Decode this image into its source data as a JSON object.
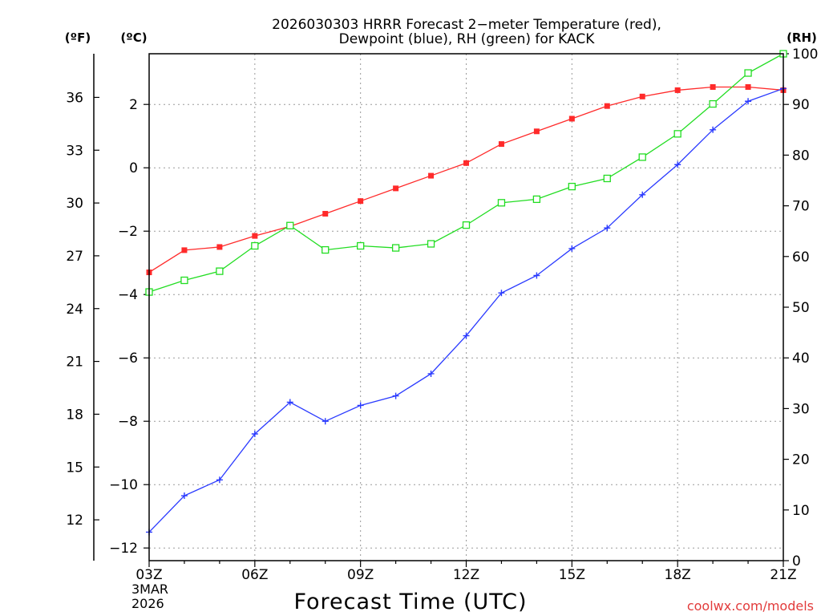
{
  "chart_data": {
    "type": "line",
    "title_line1": "2026030303 HRRR Forecast 2−meter Temperature (red),",
    "title_line2": "Dewpoint (blue), RH (green) for KACK",
    "xlabel": "Forecast Time (UTC)",
    "footer": "coolwx.com/models",
    "date_line1": "3MAR",
    "date_line2": "2026",
    "axis_label_f": "(ºF)",
    "axis_label_c": "(ºC)",
    "axis_label_rh": "(RH)",
    "x_hours": [
      3,
      4,
      5,
      6,
      7,
      8,
      9,
      10,
      11,
      12,
      13,
      14,
      15,
      16,
      17,
      18,
      19,
      20,
      21
    ],
    "x_ticks": [
      {
        "hour": 3,
        "label": "03Z"
      },
      {
        "hour": 6,
        "label": "06Z"
      },
      {
        "hour": 9,
        "label": "09Z"
      },
      {
        "hour": 12,
        "label": "12Z"
      },
      {
        "hour": 15,
        "label": "15Z"
      },
      {
        "hour": 18,
        "label": "18Z"
      },
      {
        "hour": 21,
        "label": "21Z"
      }
    ],
    "xlim": [
      3,
      21
    ],
    "ylim_c": [
      -12.4,
      3.6
    ],
    "ylim_rh": [
      0,
      100
    ],
    "y_ticks_c": [
      -12,
      -10,
      -8,
      -6,
      -4,
      -2,
      0,
      2
    ],
    "y_tick_labels_c": [
      "−12",
      "−10",
      "−8",
      "−6",
      "−4",
      "−2",
      "0",
      "2"
    ],
    "y_ticks_f": [
      12,
      15,
      18,
      21,
      24,
      27,
      30,
      33,
      36
    ],
    "y_ticks_rh": [
      0,
      10,
      20,
      30,
      40,
      50,
      60,
      70,
      80,
      90,
      100
    ],
    "series": [
      {
        "name": "Temperature",
        "unit": "C",
        "color": "#ff2a2a",
        "marker": "filled-square",
        "values": [
          -3.3,
          -2.6,
          -2.5,
          -2.15,
          -1.85,
          -1.45,
          -1.05,
          -0.65,
          -0.25,
          0.15,
          0.75,
          1.15,
          1.55,
          1.95,
          2.25,
          2.45,
          2.55,
          2.55,
          2.45
        ]
      },
      {
        "name": "Dewpoint",
        "unit": "C",
        "color": "#2a3aff",
        "marker": "plus",
        "values": [
          -11.5,
          -10.35,
          -9.85,
          -8.4,
          -7.4,
          -8.0,
          -7.5,
          -7.2,
          -6.5,
          -5.3,
          -3.95,
          -3.4,
          -2.55,
          -1.9,
          -0.85,
          0.1,
          1.2,
          2.1,
          2.5
        ]
      },
      {
        "name": "RH",
        "unit": "%",
        "color": "#22dd22",
        "marker": "open-square",
        "values": [
          53,
          55.3,
          57.1,
          62.1,
          66.1,
          61.3,
          62.1,
          61.7,
          62.5,
          66.2,
          70.6,
          71.3,
          73.8,
          75.4,
          79.6,
          84.2,
          90.1,
          96.2,
          100
        ]
      }
    ]
  }
}
